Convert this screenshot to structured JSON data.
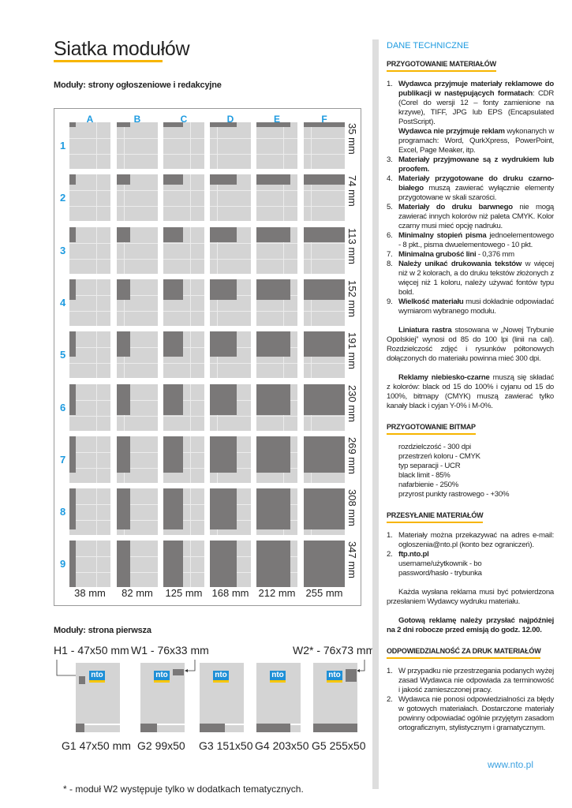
{
  "title": "Siatka modułów",
  "section1": "Moduły: strony ogłoszeniowe i redakcyjne",
  "grid": {
    "columns": [
      "A",
      "B",
      "C",
      "D",
      "E",
      "F"
    ],
    "column_widths": [
      "38 mm",
      "82 mm",
      "125 mm",
      "168 mm",
      "212 mm",
      "255 mm"
    ],
    "rows": [
      "1",
      "2",
      "3",
      "4",
      "5",
      "6",
      "7",
      "8",
      "9"
    ],
    "row_heights": [
      "35 mm",
      "74 mm",
      "113 mm",
      "152 mm",
      "191 mm",
      "230 mm",
      "269 mm",
      "308 mm",
      "347 mm"
    ],
    "column_width_values_mm": [
      38,
      82,
      125,
      168,
      212,
      255
    ],
    "row_height_values_mm": [
      35,
      74,
      113,
      152,
      191,
      230,
      269,
      308,
      347
    ],
    "colors": {
      "label": "#1e9be0",
      "module": "#7a7878",
      "page": "#d4d4d4"
    }
  },
  "section2": "Moduły: strona pierwsza",
  "front": {
    "top_labels": [
      "H1 - 47x50 mm",
      "W1 - 76x33 mm",
      "W2* - 76x73 mm"
    ],
    "bottom_labels": [
      "G1 47x50 mm",
      "G2 99x50",
      "G3 151x50",
      "G4 203x50",
      "G5 255x50"
    ],
    "logo": "nto",
    "footnote": "* - moduł W2 występuje tylko w dodatkach tematycznych."
  },
  "right": {
    "heading": "DANE TECHNICZNE",
    "s1": "PRZYGOTOWANIE MATERIAŁÓW",
    "s1_items": [
      {
        "n": "1.",
        "b": "Wydawca przyjmuje materiały reklamowe do publikacji w następujących formatach",
        "t": ": CDR (Corel do wersji 12 – fonty zamienione na krzywe), TIFF, JPG lub EPS (Encapsulated PostScript)."
      },
      {
        "n": "",
        "b": "Wydawca nie przyjmuje reklam",
        "t": " wykonanych w programach: Word, QurkXpress, PowerPoint, Excel, Page Meaker, itp."
      },
      {
        "n": "3.",
        "b": "Materiały przyjmowane są z wydrukiem lub proofem.",
        "t": ""
      },
      {
        "n": "4.",
        "b": "Materiały przygotowane do druku czarno-białego",
        "t": " muszą zawierać wyłącznie elementy przygotowane w skali szarości."
      },
      {
        "n": "5.",
        "b": "Materiały do druku barwnego",
        "t": " nie mogą zawierać innych kolorów niż paleta CMYK. Kolor czarny musi mieć opcję nadruku."
      },
      {
        "n": "6.",
        "b": "Minimalny stopień pisma",
        "t": " jednoelementowego - 8 pkt., pisma dwuelementowego - 10 pkt."
      },
      {
        "n": "7.",
        "b": "Minimalna grubość lini",
        "t": " - 0,376 mm"
      },
      {
        "n": "8.",
        "b": "Należy unikać drukowania tekstów",
        "t": " w więcej niż w 2 kolorach, a do druku tekstów złożonych z więcej niż 1 koloru, należy używać fontów typu bold."
      },
      {
        "n": "9.",
        "b": "Wielkość materiału",
        "t": " musi dokładnie odpowiadać wymiarom wybranego modułu."
      }
    ],
    "p1_b": "Liniatura rastra",
    "p1_t": " stosowana w „Nowej Trybunie Opolskiej” wynosi od 85 do 100 lpi (linii na cal). Rozdzielczość zdjęć i rysunków półtonowych dołączonych do materiału powinna mieć 300 dpi.",
    "p2_b": "Reklamy niebiesko-czarne",
    "p2_t": " muszą się składać z kolorów: black od 15 do 100% i cyjanu od 15 do 100%, bitmapy (CMYK) muszą zawierać tylko kanały black i cyjan Y-0% i M-0%.",
    "s2": "PRZYGOTOWANIE BITMAP",
    "s2_items": [
      "rozdzielczość - 300 dpi",
      "przestrzeń koloru - CMYK",
      "typ separacji - UCR",
      "black limit - 85%",
      "nafarbienie - 250%",
      "przyrost punkty rastrowego - +30%"
    ],
    "s3": "PRZESYŁANIE MATERIAŁÓW",
    "s3_item1": "Materiały można przekazywać na adres e-mail: ogloszenia@nto.pl (konto bez ograniczeń).",
    "s3_item2_b": "ftp.nto.pl",
    "s3_item2_l1": "username/użytkownik - bo",
    "s3_item2_l2": "password/hasło - trybunka",
    "p3": "Każda wysłana reklama musi być potwierdzona przesłaniem Wydawcy wydruku materiału.",
    "p4": "Gotową reklamę należy przysłać najpóźniej na 2 dni robocze przed emisją do godz. 12.00.",
    "s4": "ODPOWIEDZIALNOŚĆ ZA DRUK MATERIAŁÓW",
    "s4_items": [
      "W przypadku nie przestrzegania podanych wyżej zasad Wydawca nie odpowiada za terminowość i jakość zamieszczonej pracy.",
      "Wydawca nie ponosi odpowiedzialności za błędy w gotowych materiałach. Dostarczone materiały powinny odpowiadać ogólnie przyjętym zasadom ortograficznym, stylistycznym i gramatycznym."
    ],
    "website": "www.nto.pl"
  }
}
